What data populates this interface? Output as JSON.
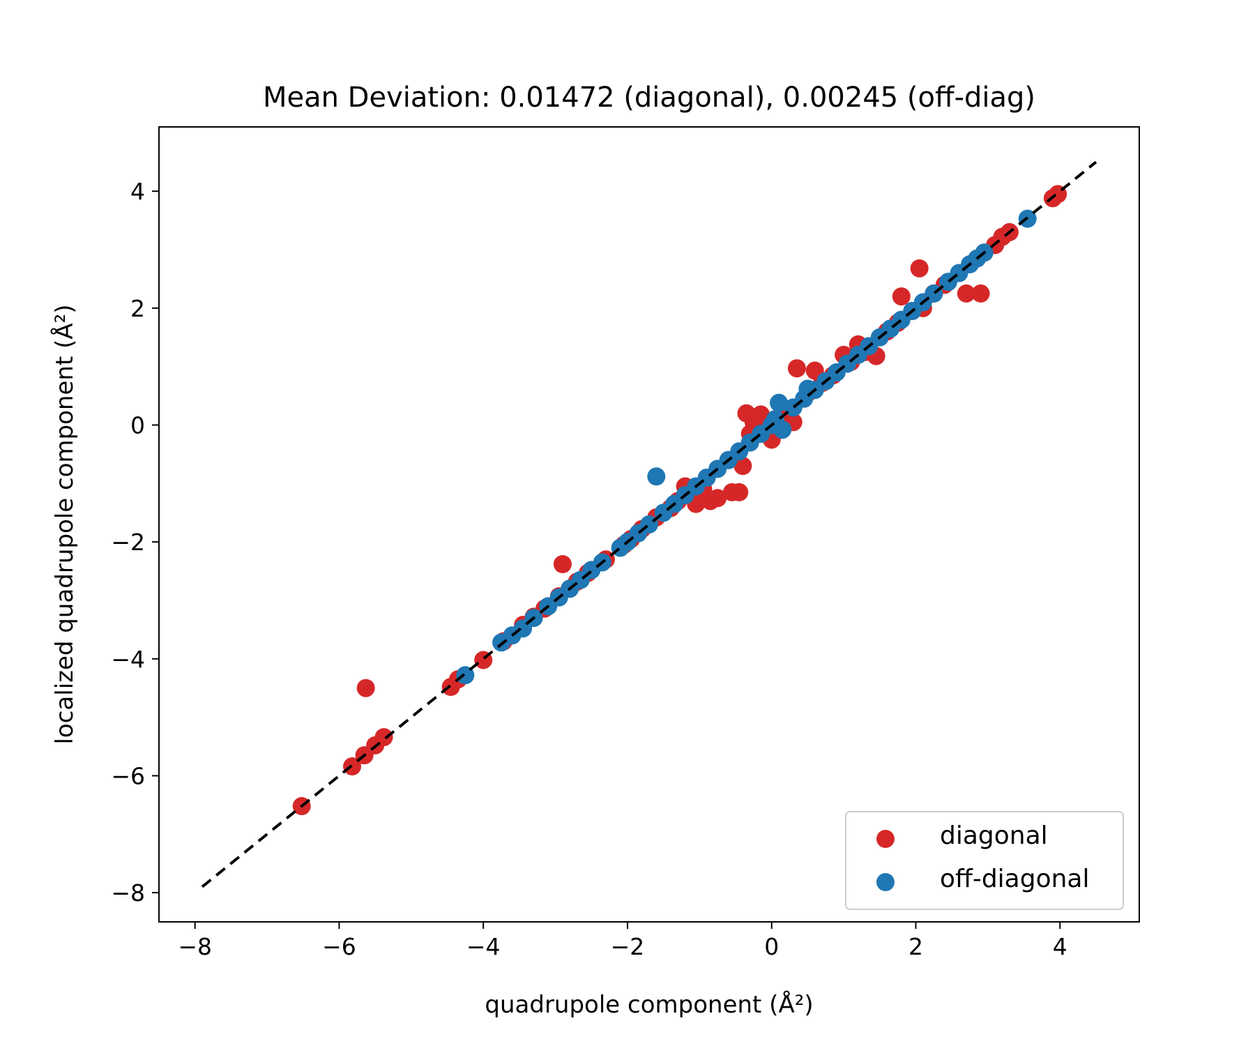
{
  "chart_data": {
    "type": "scatter",
    "title": "Mean Deviation: 0.01472 (diagonal), 0.00245 (off-diag)",
    "xlabel": "quadrupole component (Å²)",
    "ylabel": "localized quadrupole component (Å²)",
    "xlim": [
      -8.5,
      5.1
    ],
    "ylim": [
      -8.5,
      5.1
    ],
    "xticks": [
      -8,
      -6,
      -4,
      -2,
      0,
      2,
      4
    ],
    "yticks": [
      -8,
      -6,
      -4,
      -2,
      0,
      2,
      4
    ],
    "legend_position": "lower-right",
    "reference_line": {
      "style": "dashed",
      "color": "#000000",
      "from": [
        -7.9,
        -7.9
      ],
      "to": [
        4.5,
        4.5
      ]
    },
    "series": [
      {
        "name": "diagonal",
        "color": "#d62728",
        "points": [
          [
            -6.52,
            -6.52
          ],
          [
            -5.82,
            -5.84
          ],
          [
            -5.65,
            -5.65
          ],
          [
            -5.5,
            -5.48
          ],
          [
            -5.38,
            -5.34
          ],
          [
            -5.63,
            -4.5
          ],
          [
            -4.45,
            -4.48
          ],
          [
            -4.35,
            -4.35
          ],
          [
            -4.0,
            -4.02
          ],
          [
            -3.72,
            -3.7
          ],
          [
            -3.45,
            -3.42
          ],
          [
            -3.3,
            -3.28
          ],
          [
            -3.15,
            -3.14
          ],
          [
            -2.95,
            -2.93
          ],
          [
            -2.9,
            -2.38
          ],
          [
            -2.8,
            -2.8
          ],
          [
            -2.7,
            -2.68
          ],
          [
            -2.55,
            -2.53
          ],
          [
            -2.3,
            -2.3
          ],
          [
            -2.05,
            -2.05
          ],
          [
            -1.95,
            -1.95
          ],
          [
            -1.8,
            -1.78
          ],
          [
            -1.6,
            -1.58
          ],
          [
            -1.4,
            -1.42
          ],
          [
            -1.3,
            -1.3
          ],
          [
            -1.2,
            -1.05
          ],
          [
            -1.1,
            -1.12
          ],
          [
            -1.05,
            -1.35
          ],
          [
            -0.95,
            -1.1
          ],
          [
            -0.85,
            -1.3
          ],
          [
            -0.75,
            -1.25
          ],
          [
            -0.55,
            -1.15
          ],
          [
            -0.45,
            -1.15
          ],
          [
            -0.4,
            -0.7
          ],
          [
            -0.6,
            -0.6
          ],
          [
            -0.35,
            0.2
          ],
          [
            -0.3,
            -0.15
          ],
          [
            -0.25,
            0.05
          ],
          [
            -0.15,
            0.18
          ],
          [
            -0.05,
            -0.05
          ],
          [
            0.0,
            -0.25
          ],
          [
            0.1,
            0.1
          ],
          [
            0.2,
            0.15
          ],
          [
            0.3,
            0.05
          ],
          [
            0.35,
            0.97
          ],
          [
            0.5,
            0.55
          ],
          [
            0.6,
            0.93
          ],
          [
            0.7,
            0.72
          ],
          [
            0.85,
            0.85
          ],
          [
            1.0,
            1.2
          ],
          [
            1.1,
            1.08
          ],
          [
            1.2,
            1.38
          ],
          [
            1.3,
            1.25
          ],
          [
            1.45,
            1.18
          ],
          [
            1.6,
            1.6
          ],
          [
            1.75,
            1.75
          ],
          [
            1.8,
            2.2
          ],
          [
            1.95,
            1.95
          ],
          [
            2.05,
            2.68
          ],
          [
            2.1,
            2.0
          ],
          [
            2.25,
            2.25
          ],
          [
            2.4,
            2.4
          ],
          [
            2.7,
            2.25
          ],
          [
            2.9,
            2.25
          ],
          [
            2.95,
            2.95
          ],
          [
            3.1,
            3.08
          ],
          [
            3.2,
            3.22
          ],
          [
            3.3,
            3.3
          ],
          [
            3.9,
            3.88
          ],
          [
            3.97,
            3.95
          ]
        ]
      },
      {
        "name": "off-diagonal",
        "color": "#1f77b4",
        "points": [
          [
            -4.25,
            -4.28
          ],
          [
            -3.75,
            -3.72
          ],
          [
            -3.6,
            -3.6
          ],
          [
            -3.45,
            -3.48
          ],
          [
            -3.3,
            -3.3
          ],
          [
            -3.1,
            -3.1
          ],
          [
            -2.95,
            -2.95
          ],
          [
            -2.8,
            -2.8
          ],
          [
            -2.65,
            -2.65
          ],
          [
            -2.5,
            -2.48
          ],
          [
            -2.35,
            -2.35
          ],
          [
            -2.1,
            -2.1
          ],
          [
            -2.0,
            -2.0
          ],
          [
            -1.85,
            -1.85
          ],
          [
            -1.7,
            -1.7
          ],
          [
            -1.6,
            -0.88
          ],
          [
            -1.5,
            -1.5
          ],
          [
            -1.35,
            -1.35
          ],
          [
            -1.2,
            -1.2
          ],
          [
            -1.05,
            -1.05
          ],
          [
            -0.9,
            -0.9
          ],
          [
            -0.75,
            -0.75
          ],
          [
            -0.6,
            -0.6
          ],
          [
            -0.45,
            -0.45
          ],
          [
            -0.3,
            -0.3
          ],
          [
            -0.15,
            -0.15
          ],
          [
            0.0,
            0.0
          ],
          [
            0.05,
            0.1
          ],
          [
            0.1,
            0.38
          ],
          [
            0.15,
            -0.08
          ],
          [
            0.3,
            0.3
          ],
          [
            0.45,
            0.45
          ],
          [
            0.5,
            0.62
          ],
          [
            0.6,
            0.6
          ],
          [
            0.75,
            0.75
          ],
          [
            0.9,
            0.9
          ],
          [
            1.05,
            1.05
          ],
          [
            1.2,
            1.2
          ],
          [
            1.35,
            1.35
          ],
          [
            1.5,
            1.5
          ],
          [
            1.65,
            1.65
          ],
          [
            1.8,
            1.8
          ],
          [
            1.95,
            1.95
          ],
          [
            2.1,
            2.1
          ],
          [
            2.25,
            2.25
          ],
          [
            2.45,
            2.45
          ],
          [
            2.6,
            2.6
          ],
          [
            2.75,
            2.75
          ],
          [
            2.85,
            2.85
          ],
          [
            2.95,
            2.95
          ],
          [
            3.55,
            3.53
          ]
        ]
      }
    ]
  }
}
